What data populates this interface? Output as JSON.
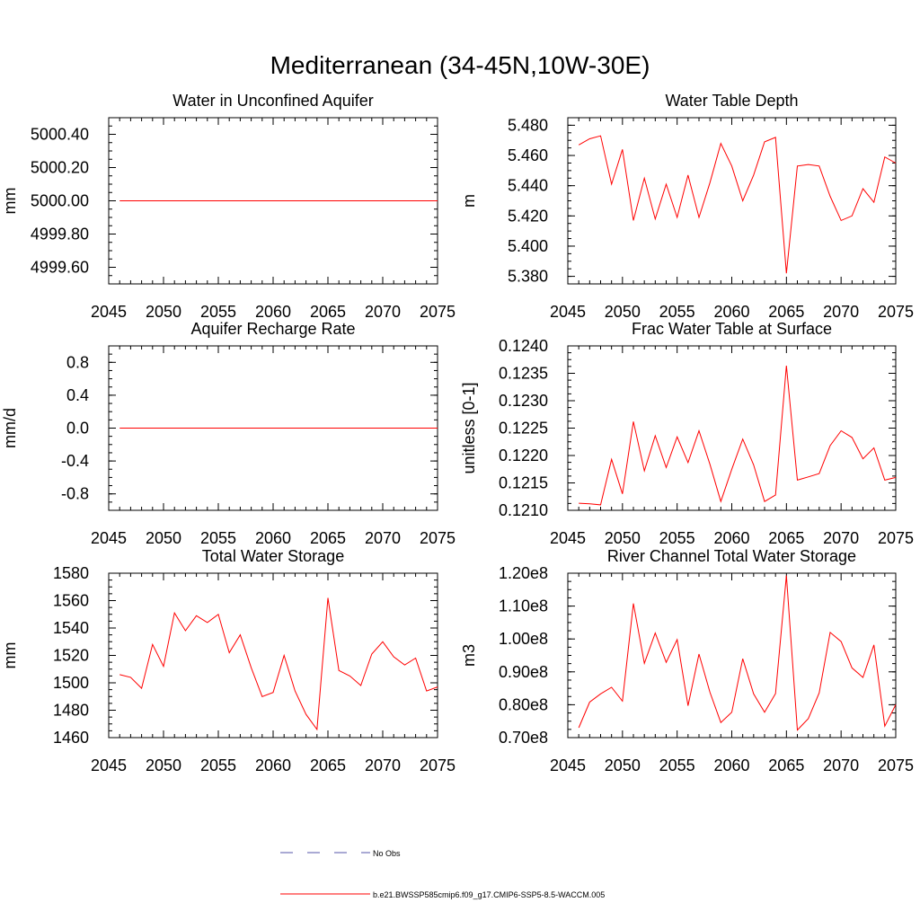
{
  "figure": {
    "title": "Mediterranean (34-45N,10W-30E)"
  },
  "legend": {
    "obs_label": "No Obs",
    "model_label": "b.e21.BWSSP585cmip6.f09_g17.CMIP6-SSP5-8.5-WACCM.005"
  },
  "colors": {
    "model": "#ff0000",
    "obs": "#5555aa",
    "axis": "#000000"
  },
  "chart_data": [
    {
      "type": "line",
      "title": "Water in Unconfined Aquifer",
      "ylabel": "mm",
      "xlim": [
        2045,
        2075
      ],
      "ylim": [
        4999.5,
        5000.5
      ],
      "xticks": [
        2045,
        2050,
        2055,
        2060,
        2065,
        2070,
        2075
      ],
      "xtick_labels": [
        "2045",
        "2050",
        "2055",
        "2060",
        "2065",
        "2070",
        "2075"
      ],
      "yticks": [
        4999.6,
        4999.8,
        5000.0,
        5000.2,
        5000.4
      ],
      "ytick_labels": [
        "4999.60",
        "4999.80",
        "5000.00",
        "5000.20",
        "5000.40"
      ],
      "series": [
        {
          "x": [
            2046,
            2047,
            2048,
            2049,
            2050,
            2051,
            2052,
            2053,
            2054,
            2055,
            2056,
            2057,
            2058,
            2059,
            2060,
            2061,
            2062,
            2063,
            2064,
            2065,
            2066,
            2067,
            2068,
            2069,
            2070,
            2071,
            2072,
            2073,
            2074,
            2075
          ],
          "values": [
            5000,
            5000,
            5000,
            5000,
            5000,
            5000,
            5000,
            5000,
            5000,
            5000,
            5000,
            5000,
            5000,
            5000,
            5000,
            5000,
            5000,
            5000,
            5000,
            5000,
            5000,
            5000,
            5000,
            5000,
            5000,
            5000,
            5000,
            5000,
            5000,
            5000
          ]
        }
      ]
    },
    {
      "type": "line",
      "title": "Water Table Depth",
      "ylabel": "m",
      "xlim": [
        2045,
        2075
      ],
      "ylim": [
        5.375,
        5.485
      ],
      "xticks": [
        2045,
        2050,
        2055,
        2060,
        2065,
        2070,
        2075
      ],
      "xtick_labels": [
        "2045",
        "2050",
        "2055",
        "2060",
        "2065",
        "2070",
        "2075"
      ],
      "yticks": [
        5.38,
        5.4,
        5.42,
        5.44,
        5.46,
        5.48
      ],
      "ytick_labels": [
        "5.380",
        "5.400",
        "5.420",
        "5.440",
        "5.460",
        "5.480"
      ],
      "series": [
        {
          "x": [
            2046,
            2047,
            2048,
            2049,
            2050,
            2051,
            2052,
            2053,
            2054,
            2055,
            2056,
            2057,
            2058,
            2059,
            2060,
            2061,
            2062,
            2063,
            2064,
            2065,
            2066,
            2067,
            2068,
            2069,
            2070,
            2071,
            2072,
            2073,
            2074,
            2075
          ],
          "values": [
            5.467,
            5.471,
            5.473,
            5.441,
            5.464,
            5.417,
            5.445,
            5.418,
            5.441,
            5.419,
            5.447,
            5.419,
            5.442,
            5.468,
            5.453,
            5.43,
            5.447,
            5.469,
            5.472,
            5.382,
            5.453,
            5.454,
            5.453,
            5.433,
            5.417,
            5.42,
            5.438,
            5.429,
            5.459,
            5.455
          ]
        }
      ]
    },
    {
      "type": "line",
      "title": "Aquifer Recharge Rate",
      "ylabel": "mm/d",
      "xlim": [
        2045,
        2075
      ],
      "ylim": [
        -1.0,
        1.0
      ],
      "xticks": [
        2045,
        2050,
        2055,
        2060,
        2065,
        2070,
        2075
      ],
      "xtick_labels": [
        "2045",
        "2050",
        "2055",
        "2060",
        "2065",
        "2070",
        "2075"
      ],
      "yticks": [
        -0.8,
        -0.4,
        0.0,
        0.4,
        0.8
      ],
      "ytick_labels": [
        "-0.8",
        "-0.4",
        "0.0",
        "0.4",
        "0.8"
      ],
      "series": [
        {
          "x": [
            2046,
            2047,
            2048,
            2049,
            2050,
            2051,
            2052,
            2053,
            2054,
            2055,
            2056,
            2057,
            2058,
            2059,
            2060,
            2061,
            2062,
            2063,
            2064,
            2065,
            2066,
            2067,
            2068,
            2069,
            2070,
            2071,
            2072,
            2073,
            2074,
            2075
          ],
          "values": [
            0,
            0,
            0,
            0,
            0,
            0,
            0,
            0,
            0,
            0,
            0,
            0,
            0,
            0,
            0,
            0,
            0,
            0,
            0,
            0,
            0,
            0,
            0,
            0,
            0,
            0,
            0,
            0,
            0,
            0
          ]
        }
      ]
    },
    {
      "type": "line",
      "title": "Frac Water Table at Surface",
      "ylabel": "unitless [0-1]",
      "xlim": [
        2045,
        2075
      ],
      "ylim": [
        0.121,
        0.124
      ],
      "xticks": [
        2045,
        2050,
        2055,
        2060,
        2065,
        2070,
        2075
      ],
      "xtick_labels": [
        "2045",
        "2050",
        "2055",
        "2060",
        "2065",
        "2070",
        "2075"
      ],
      "yticks": [
        0.121,
        0.1215,
        0.122,
        0.1225,
        0.123,
        0.1235,
        0.124
      ],
      "ytick_labels": [
        "0.1210",
        "0.1215",
        "0.1220",
        "0.1225",
        "0.1230",
        "0.1235",
        "0.1240"
      ],
      "series": [
        {
          "x": [
            2046,
            2047,
            2048,
            2049,
            2050,
            2051,
            2052,
            2053,
            2054,
            2055,
            2056,
            2057,
            2058,
            2059,
            2060,
            2061,
            2062,
            2063,
            2064,
            2065,
            2066,
            2067,
            2068,
            2069,
            2070,
            2071,
            2072,
            2073,
            2074,
            2075
          ],
          "values": [
            0.12113,
            0.12112,
            0.1211,
            0.12193,
            0.1213,
            0.12262,
            0.12172,
            0.12236,
            0.12178,
            0.12234,
            0.12187,
            0.12245,
            0.12184,
            0.12116,
            0.12175,
            0.1223,
            0.12183,
            0.12116,
            0.12128,
            0.12364,
            0.12155,
            0.12161,
            0.12167,
            0.12218,
            0.12245,
            0.12233,
            0.12194,
            0.12214,
            0.12155,
            0.1216
          ]
        }
      ]
    },
    {
      "type": "line",
      "title": "Total Water Storage",
      "ylabel": "mm",
      "xlim": [
        2045,
        2075
      ],
      "ylim": [
        1460,
        1580
      ],
      "xticks": [
        2045,
        2050,
        2055,
        2060,
        2065,
        2070,
        2075
      ],
      "xtick_labels": [
        "2045",
        "2050",
        "2055",
        "2060",
        "2065",
        "2070",
        "2075"
      ],
      "yticks": [
        1460,
        1480,
        1500,
        1520,
        1540,
        1560,
        1580
      ],
      "ytick_labels": [
        "1460",
        "1480",
        "1500",
        "1520",
        "1540",
        "1560",
        "1580"
      ],
      "series": [
        {
          "x": [
            2046,
            2047,
            2048,
            2049,
            2050,
            2051,
            2052,
            2053,
            2054,
            2055,
            2056,
            2057,
            2058,
            2059,
            2060,
            2061,
            2062,
            2063,
            2064,
            2065,
            2066,
            2067,
            2068,
            2069,
            2070,
            2071,
            2072,
            2073,
            2074,
            2075
          ],
          "values": [
            1506,
            1504,
            1496,
            1528,
            1512,
            1551,
            1538,
            1549,
            1544,
            1550,
            1522,
            1535,
            1511,
            1490,
            1493,
            1520,
            1494,
            1477,
            1466,
            1562,
            1509,
            1505,
            1498,
            1521,
            1530,
            1519,
            1513,
            1518,
            1494,
            1497
          ]
        }
      ]
    },
    {
      "type": "line",
      "title": "River Channel Total Water Storage",
      "ylabel": "m3",
      "xlim": [
        2045,
        2075
      ],
      "ylim": [
        70000000,
        120000000
      ],
      "xticks": [
        2045,
        2050,
        2055,
        2060,
        2065,
        2070,
        2075
      ],
      "xtick_labels": [
        "2045",
        "2050",
        "2055",
        "2060",
        "2065",
        "2070",
        "2075"
      ],
      "yticks": [
        70000000,
        80000000,
        90000000,
        100000000,
        110000000,
        120000000
      ],
      "ytick_labels": [
        "0.70e8",
        "0.80e8",
        "0.90e8",
        "1.00e8",
        "1.10e8",
        "1.20e8"
      ],
      "series": [
        {
          "x": [
            2046,
            2047,
            2048,
            2049,
            2050,
            2051,
            2052,
            2053,
            2054,
            2055,
            2056,
            2057,
            2058,
            2059,
            2060,
            2061,
            2062,
            2063,
            2064,
            2065,
            2066,
            2067,
            2068,
            2069,
            2070,
            2071,
            2072,
            2073,
            2074,
            2075
          ],
          "values": [
            73000000,
            80800000,
            83300000,
            85300000,
            81100000,
            110800000,
            92600000,
            101800000,
            92900000,
            99800000,
            79700000,
            95400000,
            83800000,
            74600000,
            77700000,
            94000000,
            83300000,
            77700000,
            83400000,
            119300000,
            72300000,
            75800000,
            83600000,
            102000000,
            99200000,
            91200000,
            88300000,
            98200000,
            73500000,
            80000000
          ]
        }
      ]
    }
  ]
}
